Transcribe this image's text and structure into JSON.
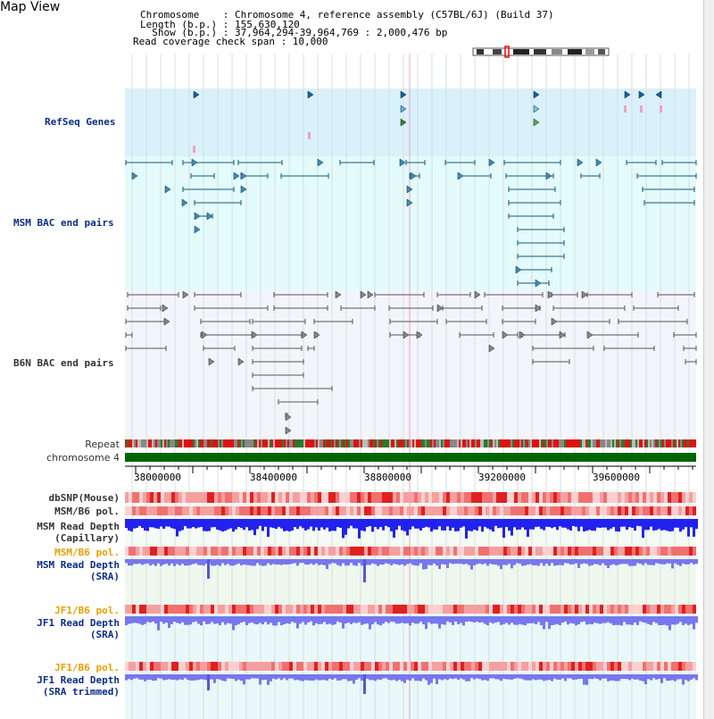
{
  "header": {
    "title": "Map View",
    "lines": [
      "Chromosome    : Chromosome 4, reference assembly (C57BL/6J) (Build 37)",
      "Length (b.p.) : 155,630,120",
      "  Show (b.p.) : 37,964,294-39,964,769 : 2,000,476 bp",
      "Read coverage check span : 10,000"
    ]
  },
  "tracks": {
    "refseq": "RefSeq Genes",
    "msm_bac": "MSM BAC end pairs",
    "b6n_bac": "B6N BAC end pairs",
    "repeat": "Repeat",
    "chromosome": "chromosome 4",
    "dbsnp": "dbSNP(Mouse)",
    "msm_b6_pol": "MSM/B6 pol.",
    "msm_depth_cap_1": "MSM Read Depth",
    "msm_depth_cap_2": "(Capillary)",
    "msm_b6_pol2": "MSM/B6 pol.",
    "msm_depth_sra_1": "MSM Read Depth",
    "msm_depth_sra_2": "(SRA)",
    "jf1_b6_pol": "JF1/B6 pol.",
    "jf1_depth_1": "JF1 Read Depth",
    "jf1_depth_2": "(SRA)",
    "jf1_b6_pol2": "JF1/B6 pol.",
    "jf1_trim_1": "JF1 Read Depth",
    "jf1_trim_2": "(SRA trimmed)"
  },
  "axis": {
    "ticks": [
      "38000000",
      "38400000",
      "38800000",
      "39200000",
      "39600000"
    ]
  },
  "colors": {
    "refseq_bg": "#d9f1fb",
    "msm_bg": "#e3fbfb",
    "b6n_bg": "#f3f5fa",
    "depth_blue": "#2222ee",
    "depth_light": "#7777ee",
    "chrom_green": "#006600",
    "label_blue": "#0b2c8a",
    "label_orange": "#e8a000"
  }
}
